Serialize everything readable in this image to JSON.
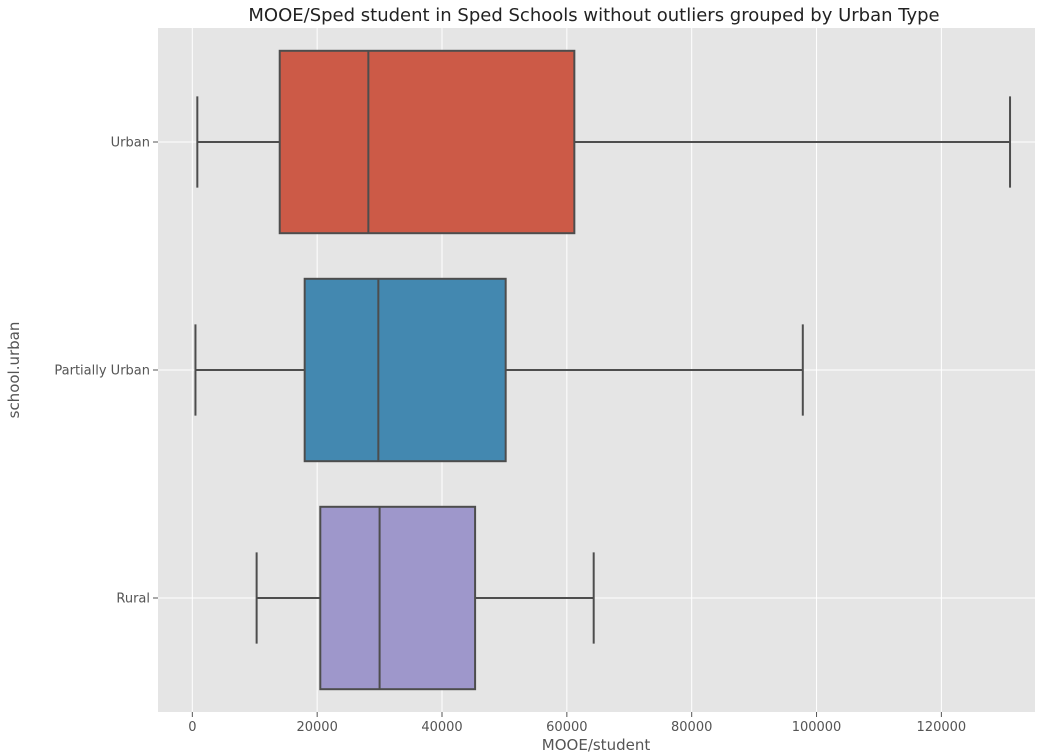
{
  "chart_data": {
    "type": "box",
    "title": "MOOE/Sped student in Sped Schools without outliers grouped by Urban Type",
    "xlabel": "MOOE/student",
    "ylabel": "school.urban",
    "orientation": "horizontal",
    "xlim": [
      -5500,
      135000
    ],
    "xticks": [
      0,
      20000,
      40000,
      60000,
      80000,
      100000,
      120000
    ],
    "xtick_labels": [
      "0",
      "20000",
      "40000",
      "60000",
      "80000",
      "100000",
      "120000"
    ],
    "grid": true,
    "categories": [
      "Urban",
      "Partially Urban",
      "Rural"
    ],
    "boxes": [
      {
        "category": "Urban",
        "whisker_low": 800,
        "q1": 14000,
        "median": 28200,
        "q3": 61200,
        "whisker_high": 131000,
        "color": "#cc5a47"
      },
      {
        "category": "Partially Urban",
        "whisker_low": 500,
        "q1": 18000,
        "median": 29800,
        "q3": 50200,
        "whisker_high": 97800,
        "color": "#4388b0"
      },
      {
        "category": "Rural",
        "whisker_low": 10300,
        "q1": 20500,
        "median": 30000,
        "q3": 45300,
        "whisker_high": 64300,
        "color": "#9e97cb"
      }
    ],
    "colors": {
      "plot_background": "#e5e5e5",
      "grid": "#ffffff",
      "box_edge": "#4d4d4d"
    }
  }
}
